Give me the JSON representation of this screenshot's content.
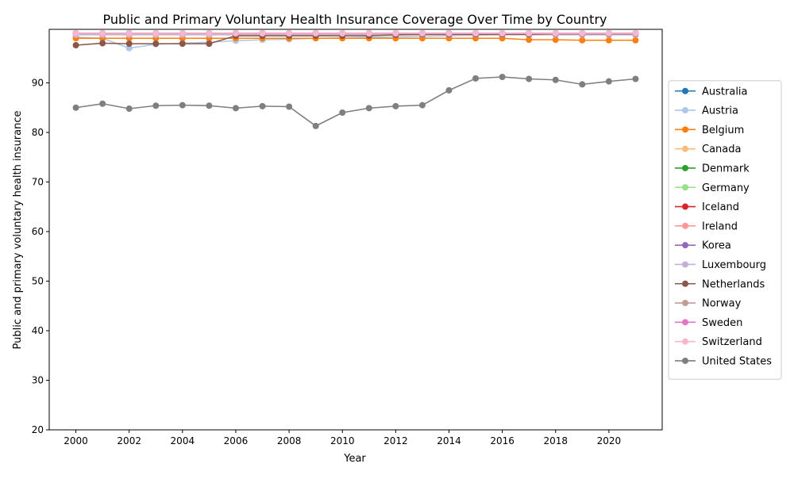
{
  "chart_data": {
    "type": "line",
    "title": "Public and Primary Voluntary Health Insurance Coverage Over Time by Country",
    "xlabel": "Year",
    "ylabel": "Public and primary voluntary health insurance",
    "xlim": [
      1999,
      2022
    ],
    "ylim": [
      20,
      100.8
    ],
    "xticks": [
      2000,
      2002,
      2004,
      2006,
      2008,
      2010,
      2012,
      2014,
      2016,
      2018,
      2020
    ],
    "yticks": [
      20,
      30,
      40,
      50,
      60,
      70,
      80,
      90
    ],
    "grid": false,
    "legend_position": "center-right-outside",
    "x": [
      2000,
      2001,
      2002,
      2003,
      2004,
      2005,
      2006,
      2007,
      2008,
      2009,
      2010,
      2011,
      2012,
      2013,
      2014,
      2015,
      2016,
      2017,
      2018,
      2019,
      2020,
      2021
    ],
    "series": [
      {
        "name": "Australia",
        "color": "#1f77b4",
        "values": [
          100,
          100,
          100,
          100,
          100,
          100,
          100,
          100,
          100,
          100,
          100,
          100,
          100,
          100,
          100,
          100,
          100,
          100,
          100,
          100,
          100,
          100
        ]
      },
      {
        "name": "Austria",
        "color": "#aec7e8",
        "values": [
          99.2,
          99.0,
          97.0,
          97.8,
          98.0,
          98.2,
          98.5,
          98.7,
          98.8,
          99.0,
          99.1,
          99.2,
          99.3,
          99.4,
          99.5,
          99.6,
          99.7,
          99.7,
          99.8,
          99.8,
          99.8,
          99.8
        ]
      },
      {
        "name": "Belgium",
        "color": "#ff7f0e",
        "values": [
          99.0,
          99.0,
          99.0,
          99.0,
          99.0,
          99.0,
          99.0,
          99.0,
          99.0,
          99.0,
          99.0,
          99.0,
          99.0,
          99.0,
          99.0,
          99.0,
          99.0,
          98.7,
          98.7,
          98.6,
          98.6,
          98.6
        ]
      },
      {
        "name": "Canada",
        "color": "#ffbb78",
        "values": [
          100,
          100,
          100,
          100,
          100,
          100,
          100,
          100,
          100,
          100,
          100,
          100,
          100,
          100,
          100,
          100,
          100,
          100,
          100,
          100,
          100,
          100
        ]
      },
      {
        "name": "Denmark",
        "color": "#2ca02c",
        "values": [
          100,
          100,
          100,
          100,
          100,
          100,
          100,
          100,
          100,
          100,
          100,
          100,
          100,
          100,
          100,
          100,
          100,
          100,
          100,
          100,
          100,
          100
        ]
      },
      {
        "name": "Germany",
        "color": "#98df8a",
        "values": [
          99.8,
          99.8,
          99.8,
          99.8,
          99.8,
          99.8,
          99.8,
          99.8,
          99.8,
          99.8,
          99.8,
          99.8,
          99.8,
          99.8,
          99.8,
          99.8,
          99.8,
          99.8,
          99.8,
          99.8,
          99.8,
          99.8
        ]
      },
      {
        "name": "Iceland",
        "color": "#d62728",
        "values": [
          100,
          100,
          100,
          100,
          100,
          100,
          100,
          100,
          100,
          100,
          100,
          100,
          100,
          100,
          100,
          100,
          100,
          100,
          100,
          100,
          100,
          100
        ]
      },
      {
        "name": "Ireland",
        "color": "#ff9896",
        "values": [
          100,
          100,
          100,
          100,
          100,
          100,
          100,
          100,
          100,
          100,
          100,
          100,
          100,
          100,
          100,
          100,
          100,
          100,
          100,
          100,
          100,
          100
        ]
      },
      {
        "name": "Korea",
        "color": "#9467bd",
        "values": [
          100,
          100,
          100,
          100,
          100,
          100,
          100,
          100,
          100,
          100,
          100,
          100,
          100,
          100,
          100,
          100,
          100,
          100,
          100,
          100,
          100,
          100
        ]
      },
      {
        "name": "Luxembourg",
        "color": "#c5b0d5",
        "values": [
          99.7,
          99.7,
          99.7,
          99.7,
          99.7,
          99.7,
          99.7,
          99.7,
          99.7,
          99.7,
          99.7,
          99.7,
          99.7,
          99.7,
          99.7,
          99.7,
          99.7,
          99.7,
          99.7,
          99.7,
          99.7,
          99.7
        ]
      },
      {
        "name": "Netherlands",
        "color": "#8c564b",
        "values": [
          97.6,
          98.0,
          97.9,
          97.9,
          97.9,
          97.9,
          99.5,
          99.5,
          99.5,
          99.5,
          99.5,
          99.5,
          99.7,
          99.8,
          99.8,
          99.8,
          99.8,
          99.8,
          99.9,
          99.9,
          99.9,
          99.9
        ]
      },
      {
        "name": "Norway",
        "color": "#c49c94",
        "values": [
          100,
          100,
          100,
          100,
          100,
          100,
          100,
          100,
          100,
          100,
          100,
          100,
          100,
          100,
          100,
          100,
          100,
          100,
          100,
          100,
          100,
          100
        ]
      },
      {
        "name": "Sweden",
        "color": "#e377c2",
        "values": [
          100,
          100,
          100,
          100,
          100,
          100,
          100,
          100,
          100,
          100,
          100,
          100,
          100,
          100,
          100,
          100,
          100,
          100,
          100,
          100,
          100,
          100
        ]
      },
      {
        "name": "Switzerland",
        "color": "#f7b6d2",
        "values": [
          100,
          100,
          100,
          100,
          100,
          100,
          100,
          100,
          100,
          100,
          100,
          100,
          100,
          100,
          100,
          100,
          100,
          100,
          100,
          100,
          100,
          100
        ]
      },
      {
        "name": "United States",
        "color": "#7f7f7f",
        "values": [
          85.0,
          85.8,
          84.8,
          85.4,
          85.5,
          85.4,
          84.9,
          85.3,
          85.2,
          81.3,
          84.0,
          84.9,
          85.3,
          85.5,
          88.5,
          90.9,
          91.2,
          90.8,
          90.6,
          89.7,
          90.3,
          90.8
        ]
      }
    ]
  }
}
